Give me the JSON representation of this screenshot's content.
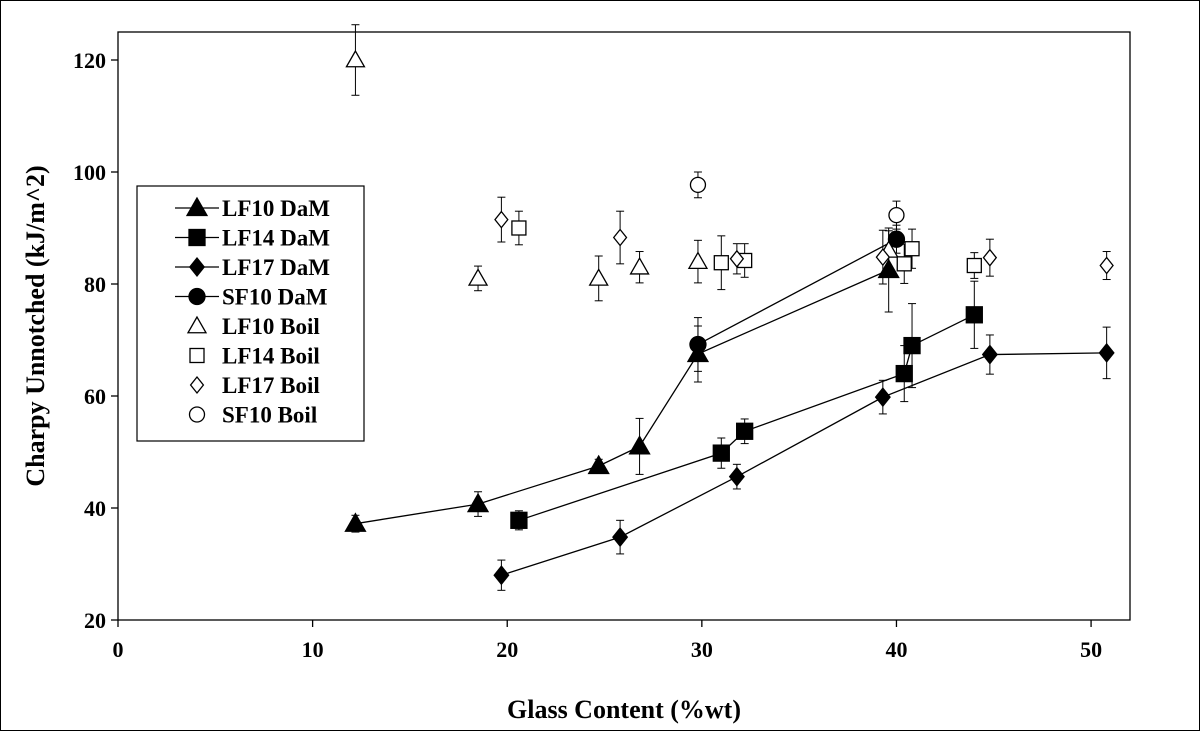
{
  "chart_data": {
    "type": "scatter",
    "title": "",
    "xlabel": "Glass Content (%wt)",
    "ylabel": "Charpy Unnotched (kJ/m^2)",
    "xlim": [
      0,
      52
    ],
    "ylim": [
      20,
      125
    ],
    "xticks": [
      0,
      10,
      20,
      30,
      40,
      50
    ],
    "yticks": [
      20,
      40,
      60,
      80,
      100,
      120
    ],
    "grid": false,
    "legend_position": "left",
    "series": [
      {
        "name": "LF10 DaM",
        "marker": "triangle",
        "filled": true,
        "line": true,
        "points": [
          {
            "x": 12.2,
            "y": 37.2,
            "err": 1.5
          },
          {
            "x": 18.5,
            "y": 40.7,
            "err": 2.2
          },
          {
            "x": 24.7,
            "y": 47.5,
            "err": 1.2
          },
          {
            "x": 26.8,
            "y": 51.0,
            "err": 5.0
          },
          {
            "x": 29.8,
            "y": 67.5,
            "err": 5.0
          },
          {
            "x": 39.6,
            "y": 82.5,
            "err": 7.5
          }
        ]
      },
      {
        "name": "LF14 DaM",
        "marker": "square",
        "filled": true,
        "line": true,
        "points": [
          {
            "x": 20.6,
            "y": 37.8,
            "err": 1.7
          },
          {
            "x": 31.0,
            "y": 49.8,
            "err": 2.7
          },
          {
            "x": 32.2,
            "y": 53.7,
            "err": 2.2
          },
          {
            "x": 40.4,
            "y": 64.0,
            "err": 5.0
          },
          {
            "x": 40.8,
            "y": 69.0,
            "err": 7.5
          },
          {
            "x": 44.0,
            "y": 74.5,
            "err": 6.0
          }
        ]
      },
      {
        "name": "LF17 DaM",
        "marker": "diamond",
        "filled": true,
        "line": true,
        "points": [
          {
            "x": 19.7,
            "y": 28.0,
            "err": 2.7
          },
          {
            "x": 25.8,
            "y": 34.8,
            "err": 3.0
          },
          {
            "x": 31.8,
            "y": 45.6,
            "err": 2.2
          },
          {
            "x": 39.3,
            "y": 59.8,
            "err": 3.0
          },
          {
            "x": 44.8,
            "y": 67.4,
            "err": 3.5
          },
          {
            "x": 50.8,
            "y": 67.7,
            "err": 4.6
          }
        ]
      },
      {
        "name": "SF10 DaM",
        "marker": "circle",
        "filled": true,
        "line": true,
        "points": [
          {
            "x": 29.8,
            "y": 69.2,
            "err": 4.8
          },
          {
            "x": 40.0,
            "y": 88.0,
            "err": 2.5
          }
        ]
      },
      {
        "name": "LF10 Boil",
        "marker": "triangle",
        "filled": false,
        "line": false,
        "points": [
          {
            "x": 12.2,
            "y": 120.0,
            "err": 6.3
          },
          {
            "x": 18.5,
            "y": 81.0,
            "err": 2.2
          },
          {
            "x": 24.7,
            "y": 81.0,
            "err": 4.0
          },
          {
            "x": 26.8,
            "y": 83.0,
            "err": 2.8
          },
          {
            "x": 29.8,
            "y": 84.0,
            "err": 3.8
          },
          {
            "x": 39.6,
            "y": 86.0,
            "err": 3.5
          }
        ]
      },
      {
        "name": "LF14 Boil",
        "marker": "square",
        "filled": false,
        "line": false,
        "points": [
          {
            "x": 20.6,
            "y": 90.0,
            "err": 3.0
          },
          {
            "x": 31.0,
            "y": 83.8,
            "err": 4.8
          },
          {
            "x": 32.2,
            "y": 84.2,
            "err": 3.0
          },
          {
            "x": 40.4,
            "y": 83.6,
            "err": 3.5
          },
          {
            "x": 40.8,
            "y": 86.3,
            "err": 3.5
          },
          {
            "x": 44.0,
            "y": 83.3,
            "err": 2.3
          }
        ]
      },
      {
        "name": "LF17 Boil",
        "marker": "diamond",
        "filled": false,
        "line": false,
        "points": [
          {
            "x": 19.7,
            "y": 91.5,
            "err": 4.0
          },
          {
            "x": 25.8,
            "y": 88.3,
            "err": 4.7
          },
          {
            "x": 31.8,
            "y": 84.5,
            "err": 2.7
          },
          {
            "x": 39.3,
            "y": 84.8,
            "err": 4.8
          },
          {
            "x": 44.8,
            "y": 84.7,
            "err": 3.3
          },
          {
            "x": 50.8,
            "y": 83.3,
            "err": 2.5
          }
        ]
      },
      {
        "name": "SF10 Boil",
        "marker": "circle",
        "filled": false,
        "line": false,
        "points": [
          {
            "x": 29.8,
            "y": 97.7,
            "err": 2.3
          },
          {
            "x": 40.0,
            "y": 92.3,
            "err": 2.5
          }
        ]
      }
    ]
  }
}
